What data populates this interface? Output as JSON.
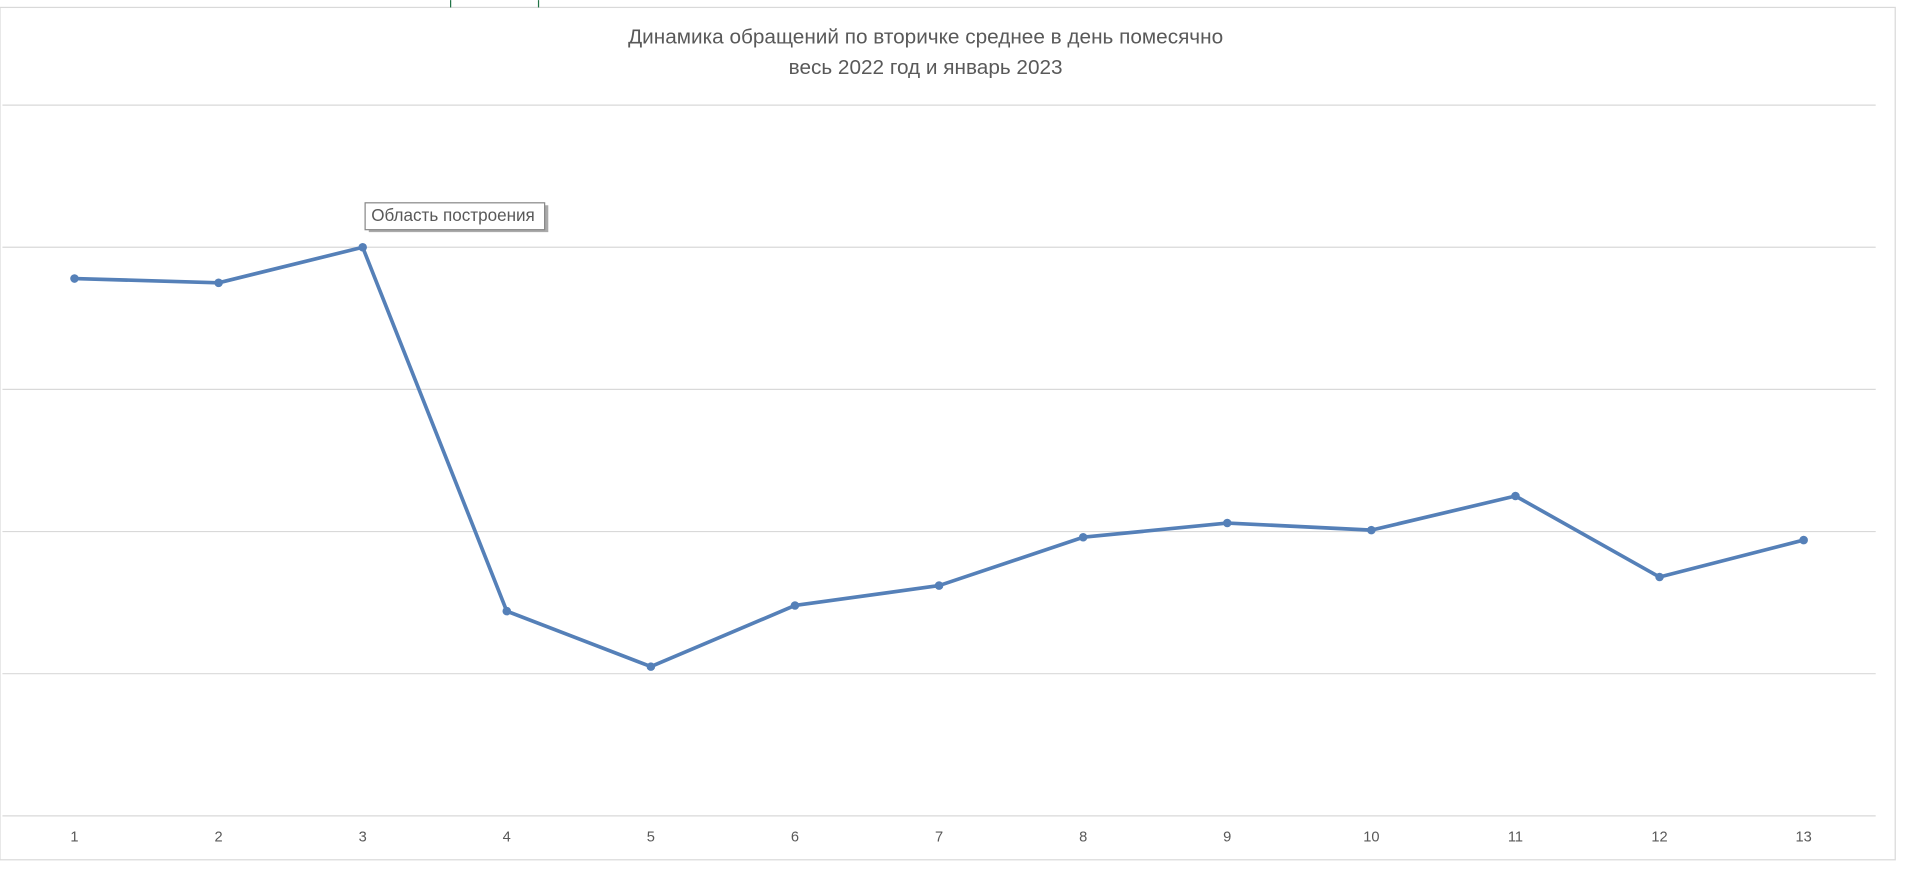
{
  "chart_data": {
    "type": "line",
    "title": "Динамика обращений по вторичке среднее в день помесячно",
    "subtitle": "весь 2022 год и январь 2023",
    "annotation": "Область построения",
    "x": [
      1,
      2,
      3,
      4,
      5,
      6,
      7,
      8,
      9,
      10,
      11,
      12,
      13
    ],
    "xlim": [
      0.5,
      13.5
    ],
    "xticks": [
      1,
      2,
      3,
      4,
      5,
      6,
      7,
      8,
      9,
      10,
      11,
      12,
      13
    ],
    "series": [
      {
        "color": "#5580b8",
        "values": [
          3.78,
          3.75,
          4.0,
          1.44,
          1.05,
          1.48,
          1.62,
          1.96,
          2.06,
          2.01,
          2.25,
          1.68,
          1.94
        ]
      }
    ],
    "ylim": [
      0,
      5
    ],
    "yticks": [
      0,
      1,
      2,
      3,
      4,
      5
    ],
    "y_tick_labels": false,
    "grid": true
  }
}
